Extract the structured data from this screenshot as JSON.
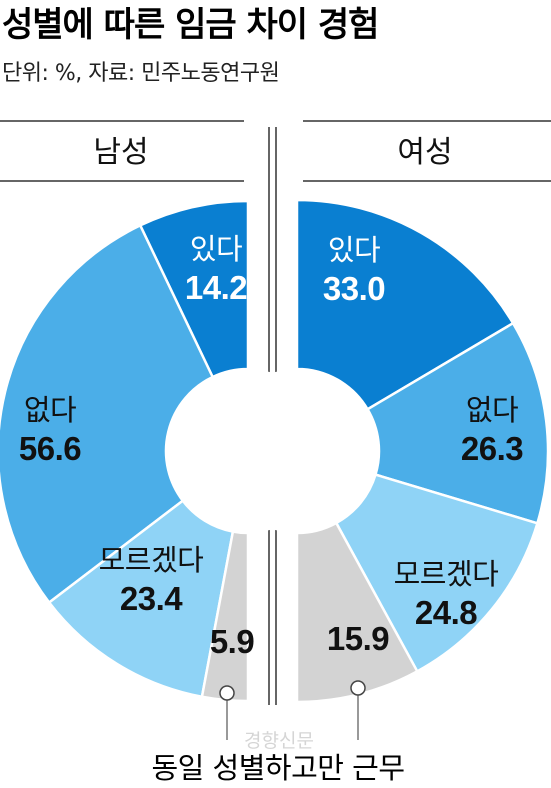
{
  "chart_data": {
    "type": "pie",
    "title": "성별에 따른 임금 차이 경험",
    "subtitle": "단위: %, 자료: 민주노동연구원",
    "callout_label": "동일 성별하고만 근무",
    "charts": [
      {
        "label": "남성",
        "slices": [
          {
            "name": "있다",
            "value": 14.2,
            "value_label": "14.2",
            "color": "#0a7fd1"
          },
          {
            "name": "없다",
            "value": 56.6,
            "value_label": "56.6",
            "color": "#4baee8"
          },
          {
            "name": "모르겠다",
            "value": 23.4,
            "value_label": "23.4",
            "color": "#8fd3f6"
          },
          {
            "name": "",
            "value": 5.9,
            "value_label": "5.9",
            "color": "#d3d3d3"
          }
        ]
      },
      {
        "label": "여성",
        "slices": [
          {
            "name": "있다",
            "value": 33.0,
            "value_label": "33.0",
            "color": "#0a7fd1"
          },
          {
            "name": "없다",
            "value": 26.3,
            "value_label": "26.3",
            "color": "#4baee8"
          },
          {
            "name": "모르겠다",
            "value": 24.8,
            "value_label": "24.8",
            "color": "#8fd3f6"
          },
          {
            "name": "",
            "value": 15.9,
            "value_label": "15.9",
            "color": "#d3d3d3"
          }
        ]
      }
    ]
  },
  "watermark": "경향신문"
}
